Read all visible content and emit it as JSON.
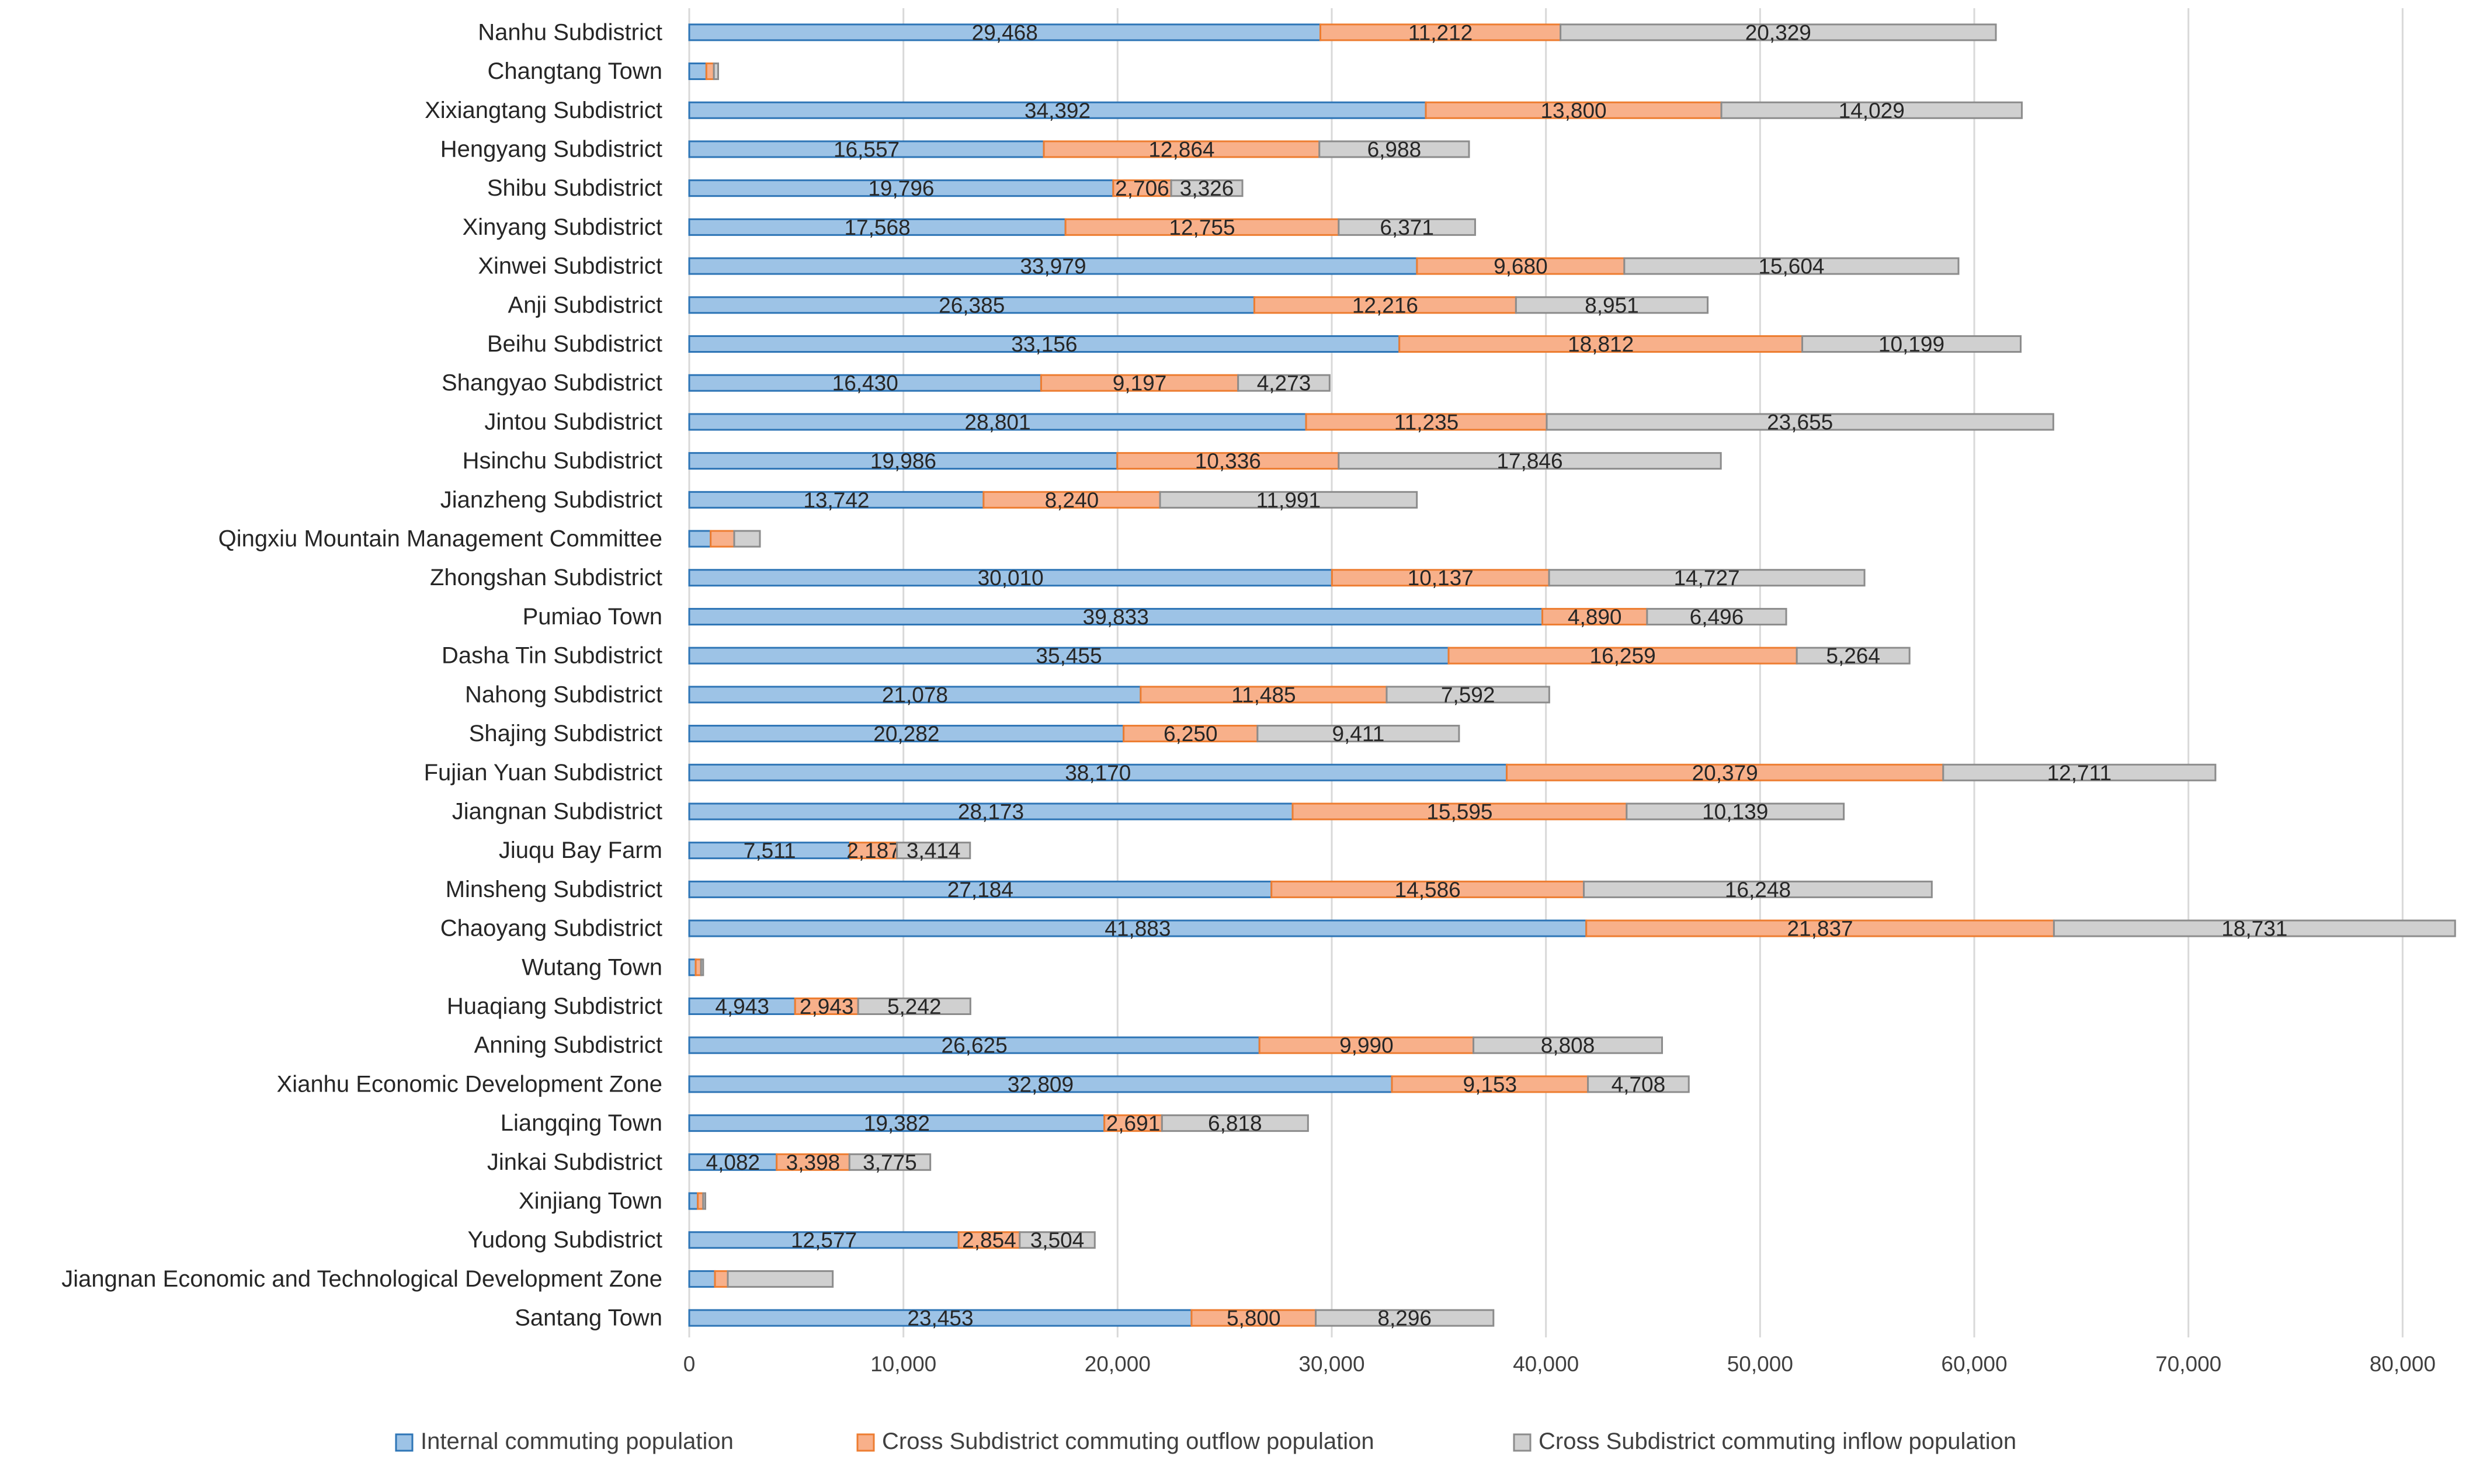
{
  "chart_data": {
    "type": "bar",
    "orientation": "horizontal",
    "stacked": true,
    "title": "",
    "xlabel": "",
    "ylabel": "",
    "xlim": [
      0,
      82500
    ],
    "x_ticks": [
      0,
      10000,
      20000,
      30000,
      40000,
      50000,
      60000,
      70000,
      80000
    ],
    "x_tick_labels": [
      "0",
      "10,000",
      "20,000",
      "30,000",
      "40,000",
      "50,000",
      "60,000",
      "70,000",
      "80,000"
    ],
    "grid": "vertical",
    "legend_position": "bottom",
    "categories": [
      "Nanhu Subdistrict",
      "Changtang Town",
      "Xixiangtang Subdistrict",
      "Hengyang Subdistrict",
      "Shibu Subdistrict",
      "Xinyang Subdistrict",
      "Xinwei Subdistrict",
      "Anji Subdistrict",
      "Beihu Subdistrict",
      "Shangyao Subdistrict",
      "Jintou Subdistrict",
      "Hsinchu Subdistrict",
      "Jianzheng Subdistrict",
      "Qingxiu Mountain Management Committee",
      "Zhongshan Subdistrict",
      "Pumiao Town",
      "Dasha Tin Subdistrict",
      "Nahong Subdistrict",
      "Shajing Subdistrict",
      "Fujian Yuan Subdistrict",
      "Jiangnan Subdistrict",
      "Jiuqu Bay Farm",
      "Minsheng Subdistrict",
      "Chaoyang Subdistrict",
      "Wutang Town",
      "Huaqiang Subdistrict",
      "Anning Subdistrict",
      "Xianhu Economic Development Zone",
      "Liangqing Town",
      "Jinkai Subdistrict",
      "Xinjiang Town",
      "Yudong Subdistrict",
      "Jiangnan Economic and Technological Development Zone",
      "Santang Town"
    ],
    "series": [
      {
        "name": "Internal commuting population",
        "color": "#9DC3E6",
        "border_color": "#2E75B6",
        "values": [
          29468,
          800,
          34392,
          16557,
          19796,
          17568,
          33979,
          26385,
          33156,
          16430,
          28801,
          19986,
          13742,
          1000,
          30010,
          39833,
          35455,
          21078,
          20282,
          38170,
          28173,
          7511,
          27184,
          41883,
          300,
          4943,
          26625,
          32809,
          19382,
          4082,
          400,
          12577,
          1200,
          23453
        ],
        "labels": [
          "29,468",
          "",
          "34,392",
          "16,557",
          "19,796",
          "17,568",
          "33,979",
          "26,385",
          "33,156",
          "16,430",
          "28,801",
          "19,986",
          "13,742",
          "",
          "30,010",
          "39,833",
          "35,455",
          "21,078",
          "20,282",
          "38,170",
          "28,173",
          "7,511",
          "27,184",
          "41,883",
          "",
          "4,943",
          "26,625",
          "32,809",
          "19,382",
          "4,082",
          "",
          "12,577",
          "",
          "23,453"
        ]
      },
      {
        "name": "Cross Subdistrict commuting outflow population",
        "color": "#F8B08A",
        "border_color": "#ED7D31",
        "values": [
          11212,
          350,
          13800,
          12864,
          2706,
          12755,
          9680,
          12216,
          18812,
          9197,
          11235,
          10336,
          8240,
          1100,
          10137,
          4890,
          16259,
          11485,
          6250,
          20379,
          15595,
          2187,
          14586,
          21837,
          250,
          2943,
          9990,
          9153,
          2691,
          3398,
          250,
          2854,
          600,
          5800
        ],
        "labels": [
          "11,212",
          "",
          "13,800",
          "12,864",
          "2,706",
          "12,755",
          "9,680",
          "12,216",
          "18,812",
          "9,197",
          "11,235",
          "10,336",
          "8,240",
          "",
          "10,137",
          "4,890",
          "16,259",
          "11,485",
          "6,250",
          "20,379",
          "15,595",
          "2,187",
          "14,586",
          "21,837",
          "",
          "2,943",
          "9,990",
          "9,153",
          "2,691",
          "3,398",
          "",
          "2,854",
          "",
          "5,800"
        ]
      },
      {
        "name": "Cross Subdistrict commuting inflow population",
        "color": "#D0D0D0",
        "border_color": "#8C8C8C",
        "values": [
          20329,
          200,
          14029,
          6988,
          3326,
          6371,
          15604,
          8951,
          10199,
          4273,
          23655,
          17846,
          11991,
          1200,
          14727,
          6496,
          5264,
          7592,
          9411,
          12711,
          10139,
          3414,
          16248,
          18731,
          100,
          5242,
          8808,
          4708,
          6818,
          3775,
          100,
          3504,
          4900,
          8296
        ],
        "labels": [
          "20,329",
          "",
          "14,029",
          "6,988",
          "3,326",
          "6,371",
          "15,604",
          "8,951",
          "10,199",
          "4,273",
          "23,655",
          "17,846",
          "11,991",
          "",
          "14,727",
          "6,496",
          "5,264",
          "7,592",
          "9,411",
          "12,711",
          "10,139",
          "3,414",
          "16,248",
          "18,731",
          "",
          "5,242",
          "8,808",
          "4,708",
          "6,818",
          "3,775",
          "",
          "3,504",
          "",
          "8,296"
        ]
      }
    ]
  }
}
